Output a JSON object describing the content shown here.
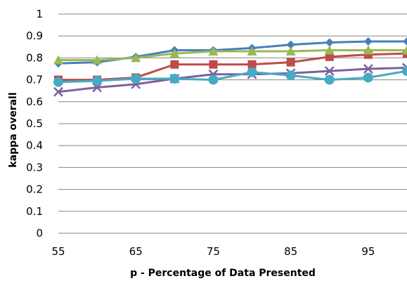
{
  "chart_data": {
    "type": "line",
    "title": "",
    "xlabel": "p - Percentage of Data Presented",
    "ylabel": "kappa overall",
    "x": [
      55,
      60,
      65,
      70,
      75,
      80,
      85,
      90,
      95,
      100
    ],
    "xlim": [
      55,
      100
    ],
    "ylim": [
      0,
      1
    ],
    "xticks": [
      "55",
      "65",
      "75",
      "85",
      "95"
    ],
    "yticks": [
      "0",
      "0.1",
      "0.2",
      "0.3",
      "0.4",
      "0.5",
      "0.6",
      "0.7",
      "0.8",
      "0.9",
      "1"
    ],
    "grid": true,
    "legend": "none",
    "series": [
      {
        "color": "#4A7EBB",
        "marker": "diamond",
        "values": [
          0.775,
          0.78,
          0.805,
          0.835,
          0.835,
          0.845,
          0.86,
          0.87,
          0.875,
          0.875
        ]
      },
      {
        "color": "#BE4B48",
        "marker": "square",
        "values": [
          0.7,
          0.7,
          0.71,
          0.77,
          0.77,
          0.77,
          0.78,
          0.805,
          0.815,
          0.82
        ]
      },
      {
        "color": "#98B954",
        "marker": "triangle",
        "values": [
          0.79,
          0.79,
          0.8,
          0.82,
          0.83,
          0.83,
          0.83,
          0.835,
          0.835,
          0.835
        ]
      },
      {
        "color": "#7D60A0",
        "marker": "x",
        "values": [
          0.645,
          0.665,
          0.68,
          0.705,
          0.725,
          0.725,
          0.73,
          0.74,
          0.75,
          0.755
        ]
      },
      {
        "color": "#46AAC5",
        "marker": "circle",
        "values": [
          0.69,
          0.695,
          0.705,
          0.705,
          0.7,
          0.735,
          0.72,
          0.7,
          0.71,
          0.74
        ]
      }
    ]
  }
}
